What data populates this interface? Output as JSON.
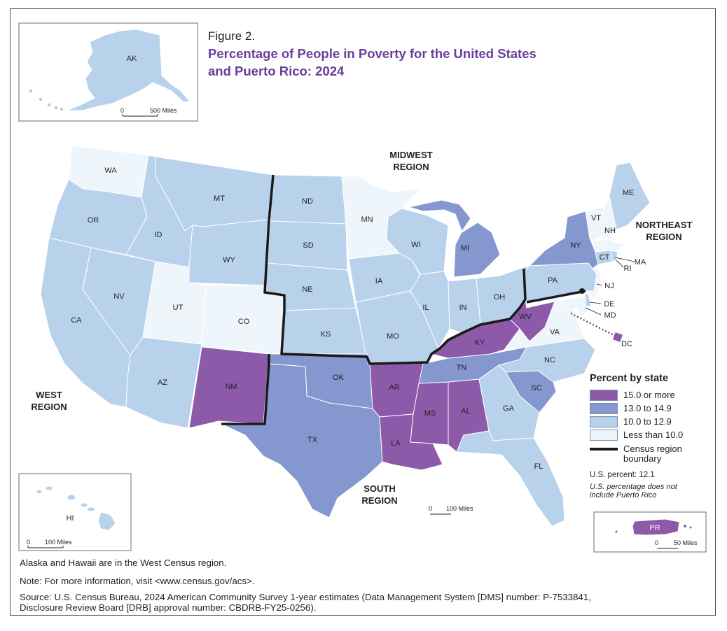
{
  "figure": {
    "label": "Figure 2.",
    "title": "Percentage of People in Poverty for the United States and Puerto Rico: 2024"
  },
  "colors": {
    "c15": "#8d59a9",
    "c13": "#8497cf",
    "c10": "#b8d2ec",
    "clt": "#eef5fb",
    "boundary": "#1a1a1a",
    "title": "#6a3d9a"
  },
  "regions": {
    "midwest": "MIDWEST REGION",
    "northeast": "NORTHEAST REGION",
    "west": "WEST REGION",
    "south": "SOUTH REGION"
  },
  "legend": {
    "title": "Percent by state",
    "items": [
      {
        "label": "15.0 or more",
        "color": "#8d59a9"
      },
      {
        "label": "13.0 to 14.9",
        "color": "#8497cf"
      },
      {
        "label": "10.0 to 12.9",
        "color": "#b8d2ec"
      },
      {
        "label": "Less than 10.0",
        "color": "#eef5fb"
      }
    ],
    "boundary_label": "Census region boundary",
    "us_percent": "U.S. percent: 12.1",
    "us_note": "U.S. percentage does not include Puerto Rico"
  },
  "scales": {
    "ak": {
      "zero": "0",
      "dist": "500 Miles"
    },
    "hi": {
      "zero": "0",
      "dist": "100 Miles"
    },
    "main": {
      "zero": "0",
      "dist": "100 Miles"
    },
    "pr": {
      "zero": "0",
      "dist": "50 Miles"
    }
  },
  "states": [
    {
      "abbr": "AK",
      "category": "10.0 to 12.9"
    },
    {
      "abbr": "HI",
      "category": "10.0 to 12.9"
    },
    {
      "abbr": "PR",
      "category": "15.0 or more"
    },
    {
      "abbr": "WA",
      "category": "Less than 10.0"
    },
    {
      "abbr": "OR",
      "category": "10.0 to 12.9"
    },
    {
      "abbr": "CA",
      "category": "10.0 to 12.9"
    },
    {
      "abbr": "NV",
      "category": "10.0 to 12.9"
    },
    {
      "abbr": "ID",
      "category": "10.0 to 12.9"
    },
    {
      "abbr": "MT",
      "category": "10.0 to 12.9"
    },
    {
      "abbr": "WY",
      "category": "10.0 to 12.9"
    },
    {
      "abbr": "UT",
      "category": "Less than 10.0"
    },
    {
      "abbr": "CO",
      "category": "Less than 10.0"
    },
    {
      "abbr": "AZ",
      "category": "10.0 to 12.9"
    },
    {
      "abbr": "NM",
      "category": "15.0 or more"
    },
    {
      "abbr": "ND",
      "category": "10.0 to 12.9"
    },
    {
      "abbr": "SD",
      "category": "10.0 to 12.9"
    },
    {
      "abbr": "NE",
      "category": "10.0 to 12.9"
    },
    {
      "abbr": "KS",
      "category": "10.0 to 12.9"
    },
    {
      "abbr": "MN",
      "category": "Less than 10.0"
    },
    {
      "abbr": "IA",
      "category": "10.0 to 12.9"
    },
    {
      "abbr": "MO",
      "category": "10.0 to 12.9"
    },
    {
      "abbr": "WI",
      "category": "10.0 to 12.9"
    },
    {
      "abbr": "IL",
      "category": "10.0 to 12.9"
    },
    {
      "abbr": "MI",
      "category": "13.0 to 14.9"
    },
    {
      "abbr": "IN",
      "category": "10.0 to 12.9"
    },
    {
      "abbr": "OH",
      "category": "10.0 to 12.9"
    },
    {
      "abbr": "OK",
      "category": "13.0 to 14.9"
    },
    {
      "abbr": "TX",
      "category": "13.0 to 14.9"
    },
    {
      "abbr": "AR",
      "category": "15.0 or more"
    },
    {
      "abbr": "LA",
      "category": "15.0 or more"
    },
    {
      "abbr": "MS",
      "category": "15.0 or more"
    },
    {
      "abbr": "AL",
      "category": "15.0 or more"
    },
    {
      "abbr": "TN",
      "category": "13.0 to 14.9"
    },
    {
      "abbr": "KY",
      "category": "15.0 or more"
    },
    {
      "abbr": "WV",
      "category": "15.0 or more"
    },
    {
      "abbr": "VA",
      "category": "Less than 10.0"
    },
    {
      "abbr": "NC",
      "category": "10.0 to 12.9"
    },
    {
      "abbr": "SC",
      "category": "13.0 to 14.9"
    },
    {
      "abbr": "GA",
      "category": "10.0 to 12.9"
    },
    {
      "abbr": "FL",
      "category": "10.0 to 12.9"
    },
    {
      "abbr": "PA",
      "category": "10.0 to 12.9"
    },
    {
      "abbr": "NY",
      "category": "13.0 to 14.9"
    },
    {
      "abbr": "VT",
      "category": "Less than 10.0"
    },
    {
      "abbr": "NH",
      "category": "Less than 10.0"
    },
    {
      "abbr": "ME",
      "category": "10.0 to 12.9"
    },
    {
      "abbr": "MA",
      "category": "Less than 10.0"
    },
    {
      "abbr": "RI",
      "category": "10.0 to 12.9"
    },
    {
      "abbr": "CT",
      "category": "10.0 to 12.9"
    },
    {
      "abbr": "NJ",
      "category": "Less than 10.0"
    },
    {
      "abbr": "DE",
      "category": "10.0 to 12.9"
    },
    {
      "abbr": "MD",
      "category": "Less than 10.0"
    },
    {
      "abbr": "DC",
      "category": "15.0 or more"
    }
  ],
  "footnotes": {
    "region_note": "Alaska and Hawaii are in the West Census region.",
    "info_note": "Note: For more information, visit <www.census.gov/acs>.",
    "source_line1": "Source: U.S. Census Bureau, 2024 American Community Survey 1-year estimates (Data Management System [DMS] number: P-7533841,",
    "source_line2": "Disclosure Review Board [DRB] approval number: CBDRB-FY25-0256)."
  }
}
